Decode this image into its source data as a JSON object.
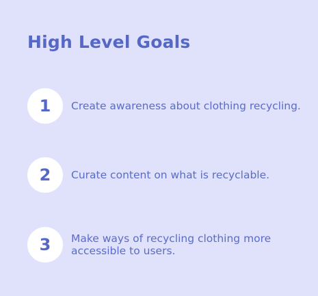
{
  "title": "High Level Goals",
  "goals": [
    {
      "number": "1",
      "text": "Create awareness about clothing recycling."
    },
    {
      "number": "2",
      "text": "Curate content on what is recyclable."
    },
    {
      "number": "3",
      "text": "Make ways of recycling clothing more accessible to users."
    }
  ],
  "colors": {
    "background": "#dfe2fa",
    "accent": "#5568c8",
    "circle": "#ffffff"
  }
}
